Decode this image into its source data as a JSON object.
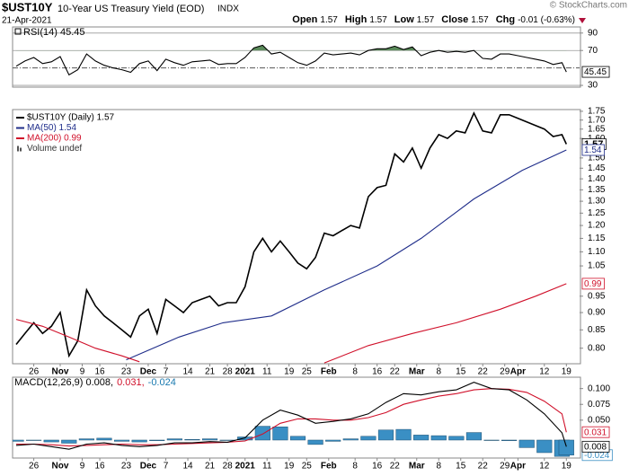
{
  "header": {
    "symbol": "$UST10Y",
    "name": "10-Year US Treasury Yield (EOD)",
    "exchange": "INDX",
    "date": "21-Apr-2021",
    "credit": "© StockCharts.com",
    "quote": [
      {
        "label": "Open",
        "value": 1.57
      },
      {
        "label": "High",
        "value": 1.57
      },
      {
        "label": "Low",
        "value": 1.57
      },
      {
        "label": "Close",
        "value": 1.57
      },
      {
        "label": "Chg",
        "value": -0.01,
        "value_label": "-0.01 (-0.63%)"
      }
    ]
  },
  "chart_data": [
    {
      "type": "line",
      "title": "RSI(14) 45.45",
      "xlim": [
        0,
        128
      ],
      "ylim": [
        28,
        97
      ],
      "yticks": [
        30,
        70,
        90
      ],
      "midline": 50,
      "overbought": 70,
      "fill_color": "#5a8a5a",
      "series": [
        {
          "color": "#000000",
          "x": [
            0,
            2,
            4,
            6,
            8,
            10,
            12,
            14,
            16,
            18,
            20,
            22,
            24,
            26,
            28,
            30,
            32,
            34,
            36,
            38,
            40,
            42,
            44,
            46,
            48,
            50,
            52,
            54,
            56,
            58,
            60,
            62,
            64,
            66,
            68,
            70,
            72,
            74,
            76,
            78,
            80,
            82,
            84,
            86,
            88,
            90,
            92,
            94,
            96,
            98,
            100,
            102,
            104,
            106,
            108,
            110,
            112,
            114,
            116,
            118,
            120,
            122,
            124,
            125
          ],
          "values": [
            52,
            58,
            62,
            55,
            57,
            63,
            42,
            48,
            66,
            58,
            53,
            50,
            48,
            45,
            55,
            58,
            47,
            60,
            56,
            53,
            57,
            58,
            59,
            54,
            55,
            55,
            62,
            73,
            76,
            66,
            68,
            62,
            56,
            53,
            58,
            67,
            65,
            66,
            67,
            65,
            70,
            72,
            72,
            75,
            71,
            74,
            64,
            68,
            70,
            68,
            69,
            68,
            70,
            61,
            60,
            66,
            66,
            64,
            62,
            60,
            58,
            54,
            56,
            45.45
          ]
        }
      ]
    },
    {
      "type": "line",
      "log_scale": true,
      "xlim": [
        0,
        128
      ],
      "ylim": [
        0.76,
        1.76
      ],
      "yticks": [
        1.75,
        {
          "value": 1.7,
          "label": "1.70"
        },
        1.65,
        {
          "value": 1.6,
          "label": "1.60"
        },
        {
          "value": 1.5,
          "label": "1.50"
        },
        1.45,
        {
          "value": 1.4,
          "label": "1.40"
        },
        1.35,
        {
          "value": 1.3,
          "label": "1.30"
        },
        1.25,
        {
          "value": 1.2,
          "label": "1.20"
        },
        1.15,
        {
          "value": 1.1,
          "label": "1.10"
        },
        1.05,
        0.95,
        {
          "value": 0.9,
          "label": "0.90"
        },
        0.85,
        {
          "value": 0.8,
          "label": "0.80"
        }
      ],
      "xticks": [
        {
          "value": 4,
          "label": "26"
        },
        {
          "value": 10,
          "label": "Nov"
        },
        {
          "value": 15,
          "label": "9"
        },
        {
          "value": 19,
          "label": "16"
        },
        {
          "value": 25,
          "label": "23"
        },
        {
          "value": 30,
          "label": "Dec"
        },
        {
          "value": 34,
          "label": "7"
        },
        {
          "value": 39,
          "label": "14"
        },
        {
          "value": 44,
          "label": "21"
        },
        {
          "value": 48,
          "label": "28"
        },
        {
          "value": 52,
          "label": "2021"
        },
        {
          "value": 57,
          "label": "11"
        },
        {
          "value": 62,
          "label": "19"
        },
        {
          "value": 66,
          "label": "25"
        },
        {
          "value": 71,
          "label": "Feb"
        },
        {
          "value": 77,
          "label": "8"
        },
        {
          "value": 82,
          "label": "16"
        },
        {
          "value": 86,
          "label": "22"
        },
        {
          "value": 91,
          "label": "Mar"
        },
        {
          "value": 96,
          "label": "8"
        },
        {
          "value": 101,
          "label": "15"
        },
        {
          "value": 106,
          "label": "22"
        },
        {
          "value": 111,
          "label": "29"
        },
        {
          "value": 114,
          "label": "Apr"
        },
        {
          "value": 120,
          "label": "12"
        },
        {
          "value": 125,
          "label": "19"
        }
      ],
      "volume_label": "Volume undef",
      "series": [
        {
          "name": "$UST10Y (Daily) 1.57",
          "color": "#000000",
          "x": [
            0,
            2,
            4,
            6,
            8,
            10,
            12,
            14,
            16,
            18,
            20,
            22,
            24,
            26,
            28,
            30,
            32,
            34,
            36,
            38,
            40,
            42,
            44,
            46,
            48,
            50,
            52,
            54,
            56,
            58,
            60,
            62,
            64,
            66,
            68,
            70,
            72,
            74,
            76,
            78,
            80,
            82,
            84,
            86,
            88,
            90,
            92,
            94,
            96,
            98,
            100,
            102,
            104,
            106,
            108,
            110,
            112,
            114,
            116,
            118,
            120,
            122,
            124,
            125
          ],
          "values": [
            0.81,
            0.84,
            0.87,
            0.84,
            0.86,
            0.9,
            0.78,
            0.82,
            0.97,
            0.92,
            0.89,
            0.87,
            0.85,
            0.83,
            0.89,
            0.91,
            0.84,
            0.94,
            0.92,
            0.9,
            0.93,
            0.94,
            0.95,
            0.92,
            0.93,
            0.93,
            0.98,
            1.1,
            1.15,
            1.1,
            1.14,
            1.1,
            1.06,
            1.04,
            1.08,
            1.17,
            1.16,
            1.18,
            1.2,
            1.19,
            1.32,
            1.36,
            1.37,
            1.52,
            1.48,
            1.55,
            1.45,
            1.55,
            1.62,
            1.6,
            1.64,
            1.63,
            1.74,
            1.64,
            1.63,
            1.73,
            1.73,
            1.71,
            1.69,
            1.67,
            1.65,
            1.61,
            1.62,
            1.57
          ]
        },
        {
          "name": "MA(50) 1.54",
          "color": "#1f2d8a",
          "x": [
            25,
            37,
            47,
            58,
            70,
            82,
            92,
            104,
            115,
            125
          ],
          "values": [
            0.77,
            0.83,
            0.87,
            0.89,
            0.97,
            1.05,
            1.15,
            1.31,
            1.44,
            1.54
          ]
        },
        {
          "name": "MA(200) 0.99",
          "color": "#d0102a",
          "x": [
            0,
            6,
            12,
            18,
            24,
            28,
            50,
            70,
            80,
            90,
            100,
            110,
            118,
            125
          ],
          "values": [
            0.88,
            0.86,
            0.83,
            0.8,
            0.78,
            0.765,
            null,
            0.762,
            0.807,
            0.84,
            0.87,
            0.91,
            0.95,
            0.99
          ]
        }
      ]
    },
    {
      "type": "line",
      "xlim": [
        0,
        128
      ],
      "ylim": [
        -0.01,
        0.118
      ],
      "y2lim": [
        -0.0286,
        0.1
      ],
      "yticks": [
        {
          "value": 0.1,
          "label": "0.100"
        },
        0.075,
        {
          "value": 0.05,
          "label": "0.050"
        }
      ],
      "xticks": [
        {
          "value": 4,
          "label": "26"
        },
        {
          "value": 10,
          "label": "Nov"
        },
        {
          "value": 15,
          "label": "9"
        },
        {
          "value": 19,
          "label": "16"
        },
        {
          "value": 25,
          "label": "23"
        },
        {
          "value": 30,
          "label": "Dec"
        },
        {
          "value": 34,
          "label": "7"
        },
        {
          "value": 39,
          "label": "14"
        },
        {
          "value": 44,
          "label": "21"
        },
        {
          "value": 48,
          "label": "28"
        },
        {
          "value": 52,
          "label": "2021"
        },
        {
          "value": 57,
          "label": "11"
        },
        {
          "value": 62,
          "label": "19"
        },
        {
          "value": 66,
          "label": "25"
        },
        {
          "value": 71,
          "label": "Feb"
        },
        {
          "value": 77,
          "label": "8"
        },
        {
          "value": 82,
          "label": "16"
        },
        {
          "value": 86,
          "label": "22"
        },
        {
          "value": 91,
          "label": "Mar"
        },
        {
          "value": 96,
          "label": "8"
        },
        {
          "value": 101,
          "label": "15"
        },
        {
          "value": 106,
          "label": "22"
        },
        {
          "value": 111,
          "label": "29"
        },
        {
          "value": 114,
          "label": "Apr"
        },
        {
          "value": 120,
          "label": "12"
        },
        {
          "value": 125,
          "label": "19"
        }
      ],
      "legend": [
        {
          "text": "MACD(12,26,9) 0.008,",
          "color": "#000000"
        },
        {
          "text": "0.031,",
          "color": "#d0102a"
        },
        {
          "text": "-0.024",
          "color": "#1a7ab0"
        }
      ],
      "series": [
        {
          "type": "bar",
          "axis": "y2",
          "color": "#3a8fc4",
          "x": [
            0,
            4,
            8,
            12,
            16,
            20,
            24,
            28,
            32,
            36,
            40,
            44,
            48,
            52,
            56,
            60,
            64,
            68,
            72,
            76,
            80,
            84,
            88,
            92,
            96,
            100,
            104,
            108,
            112,
            116,
            120,
            124,
            125
          ],
          "values": [
            -0.002,
            0,
            -0.003,
            -0.005,
            0.002,
            0.003,
            -0.002,
            -0.003,
            -0.001,
            0.002,
            0.001,
            0.002,
            0,
            0.005,
            0.022,
            0.021,
            0.006,
            -0.007,
            -0.002,
            0.002,
            0.006,
            0.016,
            0.017,
            0.008,
            0.007,
            0.006,
            0.012,
            0,
            -0.001,
            -0.012,
            -0.02,
            -0.026,
            -0.024
          ]
        },
        {
          "color": "#d0102a",
          "x": [
            0,
            4,
            8,
            12,
            16,
            20,
            24,
            28,
            32,
            36,
            40,
            44,
            48,
            52,
            56,
            60,
            64,
            68,
            72,
            76,
            80,
            84,
            88,
            92,
            96,
            100,
            104,
            108,
            112,
            116,
            120,
            124,
            125
          ],
          "values": [
            0.012,
            0.012,
            0.011,
            0.009,
            0.01,
            0.011,
            0.012,
            0.011,
            0.011,
            0.012,
            0.013,
            0.014,
            0.015,
            0.017,
            0.028,
            0.045,
            0.052,
            0.052,
            0.05,
            0.05,
            0.054,
            0.062,
            0.075,
            0.082,
            0.088,
            0.092,
            0.098,
            0.1,
            0.099,
            0.094,
            0.08,
            0.06,
            0.031
          ]
        },
        {
          "color": "#000000",
          "x": [
            0,
            4,
            8,
            12,
            16,
            20,
            24,
            28,
            32,
            36,
            40,
            44,
            48,
            52,
            56,
            60,
            64,
            68,
            72,
            76,
            80,
            84,
            88,
            92,
            96,
            100,
            104,
            108,
            112,
            116,
            120,
            124,
            125
          ],
          "values": [
            0.01,
            0.012,
            0.008,
            0.004,
            0.012,
            0.014,
            0.01,
            0.008,
            0.01,
            0.014,
            0.014,
            0.016,
            0.015,
            0.022,
            0.05,
            0.066,
            0.058,
            0.045,
            0.048,
            0.052,
            0.06,
            0.078,
            0.092,
            0.09,
            0.095,
            0.098,
            0.11,
            0.1,
            0.098,
            0.082,
            0.06,
            0.03,
            0.008
          ]
        }
      ]
    }
  ]
}
